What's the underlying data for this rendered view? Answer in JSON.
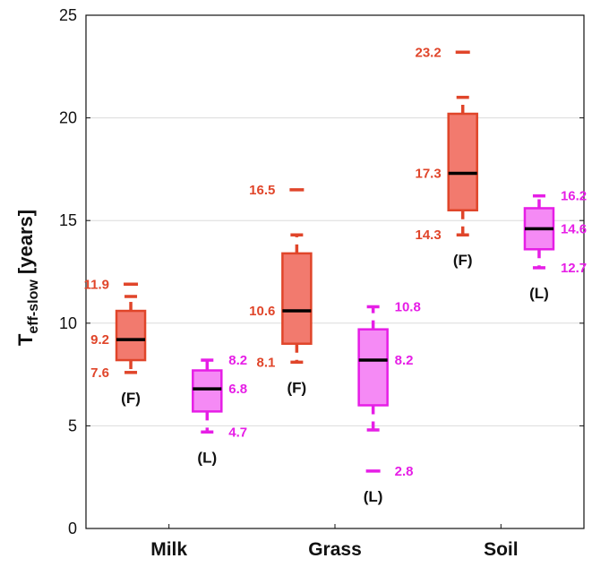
{
  "chart_data": {
    "type": "box",
    "ylabel": {
      "main": "T",
      "sub": "eff-slow",
      "unit": " [years]"
    },
    "ylim": [
      0,
      25
    ],
    "yticks": [
      "0",
      "5",
      "10",
      "15",
      "20",
      "25"
    ],
    "grid": true,
    "categories": [
      "Milk",
      "Grass",
      "Soil"
    ],
    "colors": {
      "F": "#e0452a",
      "F_fill": "#f27a6e",
      "L": "#e61ee6",
      "L_fill": "#f58af5"
    },
    "boxes": [
      {
        "category": "Milk",
        "group": "F",
        "group_label": "(F)",
        "whisker_low": 7.6,
        "q1": 8.2,
        "median": 9.2,
        "q3": 10.6,
        "whisker_high": 11.3,
        "outliers": [
          11.9
        ],
        "labels": [
          "11.9",
          "9.2",
          "7.6"
        ]
      },
      {
        "category": "Milk",
        "group": "L",
        "group_label": "(L)",
        "whisker_low": 4.7,
        "q1": 5.7,
        "median": 6.8,
        "q3": 7.7,
        "whisker_high": 8.2,
        "outliers": [],
        "labels": [
          "8.2",
          "6.8",
          "4.7"
        ]
      },
      {
        "category": "Grass",
        "group": "F",
        "group_label": "(F)",
        "whisker_low": 8.1,
        "q1": 9.0,
        "median": 10.6,
        "q3": 13.4,
        "whisker_high": 14.3,
        "outliers": [
          16.5
        ],
        "labels": [
          "16.5",
          "10.6",
          "8.1"
        ]
      },
      {
        "category": "Grass",
        "group": "L",
        "group_label": "(L)",
        "whisker_low": 4.8,
        "q1": 6.0,
        "median": 8.2,
        "q3": 9.7,
        "whisker_high": 10.8,
        "outliers": [
          2.8
        ],
        "labels": [
          "10.8",
          "8.2",
          "2.8"
        ]
      },
      {
        "category": "Soil",
        "group": "F",
        "group_label": "(F)",
        "whisker_low": 14.3,
        "q1": 15.5,
        "median": 17.3,
        "q3": 20.2,
        "whisker_high": 21.0,
        "outliers": [
          23.2
        ],
        "labels": [
          "23.2",
          "17.3",
          "14.3"
        ]
      },
      {
        "category": "Soil",
        "group": "L",
        "group_label": "(L)",
        "whisker_low": 12.7,
        "q1": 13.6,
        "median": 14.6,
        "q3": 15.6,
        "whisker_high": 16.2,
        "outliers": [],
        "labels": [
          "16.2",
          "14.6",
          "12.7"
        ]
      }
    ]
  }
}
